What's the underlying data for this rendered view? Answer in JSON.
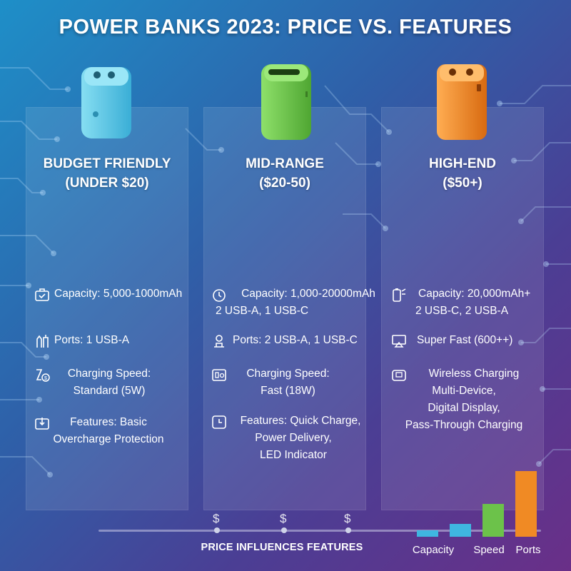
{
  "title": "POWER BANKS 2023: PRICE VS. FEATURES",
  "tiers": [
    {
      "name": "BUDGET FRIENDLY",
      "price": "(UNDER $20)",
      "color": "#5bc8e6",
      "features": [
        {
          "icon": "battery-icon",
          "lines": [
            "Capacity: 5,000-1000mAh"
          ]
        },
        {
          "icon": "ports-icon",
          "lines": [
            "Ports: 1 USB-A"
          ]
        },
        {
          "icon": "speed-icon",
          "lines": [
            "Charging Speed:",
            "Standard (5W)"
          ]
        },
        {
          "icon": "feature-icon",
          "lines": [
            "Features: Basic",
            "Overcharge Protection"
          ]
        }
      ]
    },
    {
      "name": "MID-RANGE",
      "price": "($20-50)",
      "color": "#6cc24a",
      "features": [
        {
          "icon": "timer-icon",
          "lines": [
            "Capacity: 1,000-20000mAh",
            "2 USB-A, 1 USB-C"
          ]
        },
        {
          "icon": "ports-icon",
          "lines": [
            "Ports: 2 USB-A, 1 USB-C"
          ]
        },
        {
          "icon": "speed-icon",
          "lines": [
            "Charging Speed:",
            "Fast (18W)"
          ]
        },
        {
          "icon": "feature-icon",
          "lines": [
            "Features: Quick Charge,",
            "Power Delivery,",
            "LED Indicator"
          ]
        }
      ]
    },
    {
      "name": "HIGH-END",
      "price": "($50+)",
      "color": "#f08a24",
      "features": [
        {
          "icon": "battery-icon",
          "lines": [
            "Capacity: 20,000mAh+",
            "2 USB-C, 2 USB-A"
          ]
        },
        {
          "icon": "monitor-icon",
          "lines": [
            "Super Fast (600++)"
          ]
        },
        {
          "icon": "wireless-icon",
          "lines": [
            "Wireless Charging",
            "Multi-Device,",
            "Digital Display,",
            "Pass-Through Charging"
          ]
        }
      ]
    }
  ],
  "price_axis": {
    "symbol": "$",
    "label": "PRICE INFLUENCES FEATURES"
  },
  "mini_chart": {
    "labels": [
      "Capacity",
      "Speed",
      "Ports"
    ],
    "bars": [
      {
        "value": 1,
        "color": "#3fb6e0"
      },
      {
        "value": 2,
        "color": "#3fb6e0"
      },
      {
        "value": 5,
        "color": "#6cc24a"
      },
      {
        "value": 10,
        "color": "#f08a24"
      }
    ]
  }
}
